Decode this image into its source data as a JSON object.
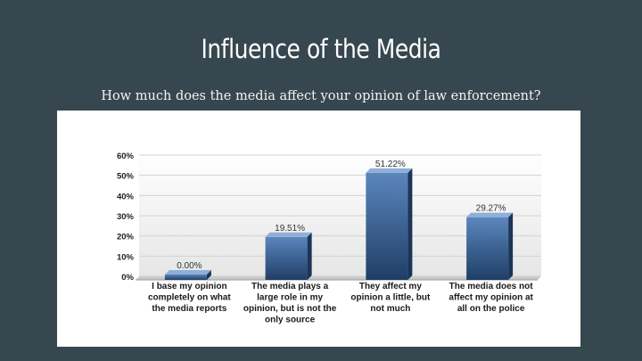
{
  "slide": {
    "title": "Influence of the Media",
    "subtitle": "How much does the media affect your opinion of law enforcement?"
  },
  "chart_data": {
    "type": "bar",
    "categories": [
      [
        "I base my opinion",
        "completely on what",
        "the media reports"
      ],
      [
        "The media plays a",
        "large role in my",
        "opinion, but is not the",
        "only source"
      ],
      [
        "They affect my",
        "opinion a little, but",
        "not much"
      ],
      [
        "The media does not",
        "affect my opinion at",
        "all on the police"
      ]
    ],
    "values": [
      0.0,
      19.51,
      51.22,
      29.27
    ],
    "data_labels": [
      "0.00%",
      "19.51%",
      "51.22%",
      "29.27%"
    ],
    "y_ticks": [
      "0%",
      "10%",
      "20%",
      "30%",
      "40%",
      "50%",
      "60%"
    ],
    "ylim": [
      0,
      60
    ],
    "grid": true,
    "style": "3d-bar",
    "colors": {
      "bar_top": "#5b86bd",
      "bar_bottom": "#1f3e66",
      "bar_side": "#1b3558",
      "bar_cap": "#8eb0d8"
    }
  }
}
